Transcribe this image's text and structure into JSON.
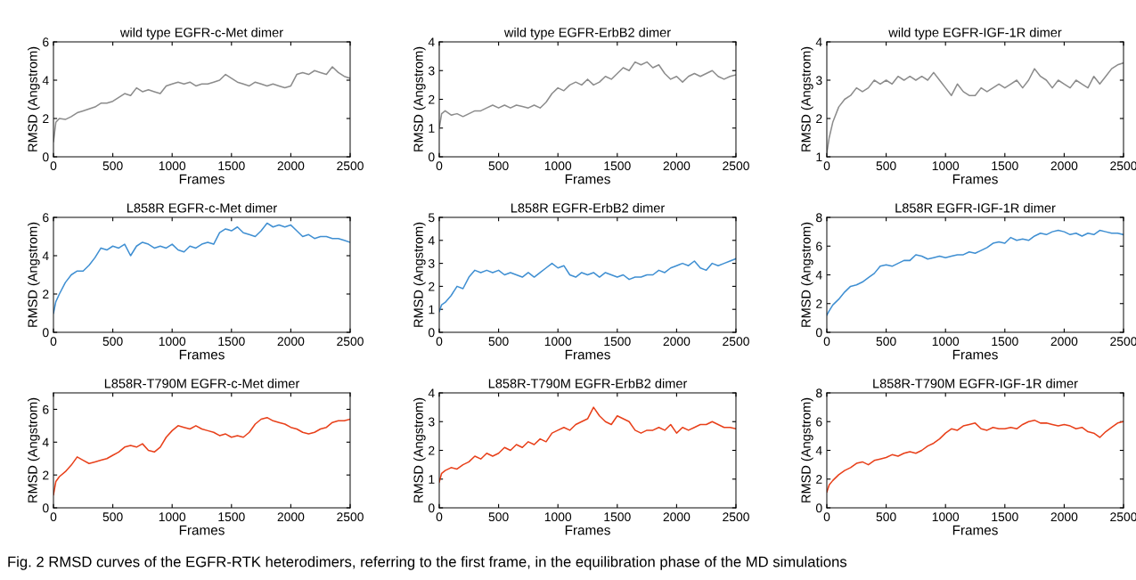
{
  "chart_data": [
    {
      "type": "line",
      "title": "wild type EGFR-c-Met dimer",
      "xlabel": "Frames",
      "ylabel": "RMSD (Angstrom)",
      "xlim": [
        0,
        2500
      ],
      "xticks": [
        0,
        500,
        1000,
        1500,
        2000,
        2500
      ],
      "ylim": [
        0,
        6
      ],
      "yticks": [
        0,
        2,
        4,
        6
      ],
      "x": [
        0,
        20,
        50,
        100,
        150,
        200,
        250,
        300,
        350,
        400,
        450,
        500,
        550,
        600,
        650,
        700,
        750,
        800,
        850,
        900,
        950,
        1000,
        1050,
        1100,
        1150,
        1200,
        1250,
        1300,
        1350,
        1400,
        1450,
        1500,
        1550,
        1600,
        1650,
        1700,
        1750,
        1800,
        1850,
        1900,
        1950,
        2000,
        2050,
        2100,
        2150,
        2200,
        2250,
        2300,
        2350,
        2400,
        2450,
        2500
      ],
      "series": [
        {
          "color": "#8c8c8c",
          "values": [
            0.8,
            1.8,
            2.0,
            1.95,
            2.1,
            2.3,
            2.4,
            2.5,
            2.6,
            2.8,
            2.8,
            2.9,
            3.1,
            3.3,
            3.2,
            3.6,
            3.4,
            3.5,
            3.4,
            3.3,
            3.7,
            3.8,
            3.9,
            3.8,
            3.9,
            3.7,
            3.8,
            3.8,
            3.9,
            4.0,
            4.3,
            4.1,
            3.9,
            3.8,
            3.7,
            3.9,
            3.8,
            3.7,
            3.8,
            3.7,
            3.6,
            3.7,
            4.3,
            4.4,
            4.3,
            4.5,
            4.4,
            4.3,
            4.7,
            4.4,
            4.2,
            4.1
          ]
        }
      ]
    },
    {
      "type": "line",
      "title": "wild type EGFR-ErbB2 dimer",
      "xlabel": "Frames",
      "ylabel": "RMSD (Angstrom)",
      "xlim": [
        0,
        2500
      ],
      "xticks": [
        0,
        500,
        1000,
        1500,
        2000,
        2500
      ],
      "ylim": [
        0,
        4
      ],
      "yticks": [
        0,
        1,
        2,
        3,
        4
      ],
      "x": [
        0,
        20,
        50,
        100,
        150,
        200,
        250,
        300,
        350,
        400,
        450,
        500,
        550,
        600,
        650,
        700,
        750,
        800,
        850,
        900,
        950,
        1000,
        1050,
        1100,
        1150,
        1200,
        1250,
        1300,
        1350,
        1400,
        1450,
        1500,
        1550,
        1600,
        1650,
        1700,
        1750,
        1800,
        1850,
        1900,
        1950,
        2000,
        2050,
        2100,
        2150,
        2200,
        2250,
        2300,
        2350,
        2400,
        2450,
        2500
      ],
      "series": [
        {
          "color": "#8c8c8c",
          "values": [
            1.0,
            1.5,
            1.6,
            1.45,
            1.5,
            1.4,
            1.5,
            1.6,
            1.6,
            1.7,
            1.8,
            1.7,
            1.8,
            1.7,
            1.8,
            1.75,
            1.7,
            1.8,
            1.7,
            1.9,
            2.2,
            2.4,
            2.3,
            2.5,
            2.6,
            2.5,
            2.7,
            2.5,
            2.6,
            2.8,
            2.7,
            2.9,
            3.1,
            3.0,
            3.3,
            3.2,
            3.3,
            3.1,
            3.2,
            2.9,
            2.7,
            2.8,
            2.6,
            2.8,
            2.9,
            2.8,
            2.9,
            3.0,
            2.8,
            2.7,
            2.8,
            2.85
          ]
        }
      ]
    },
    {
      "type": "line",
      "title": "wild type EGFR-IGF-1R dimer",
      "xlabel": "Frames",
      "ylabel": "RMSD (Angstrom)",
      "xlim": [
        0,
        2500
      ],
      "xticks": [
        0,
        500,
        1000,
        1500,
        2000,
        2500
      ],
      "ylim": [
        1,
        4
      ],
      "yticks": [
        1,
        2,
        3,
        4
      ],
      "x": [
        0,
        20,
        50,
        100,
        150,
        200,
        250,
        300,
        350,
        400,
        450,
        500,
        550,
        600,
        650,
        700,
        750,
        800,
        850,
        900,
        950,
        1000,
        1050,
        1100,
        1150,
        1200,
        1250,
        1300,
        1350,
        1400,
        1450,
        1500,
        1550,
        1600,
        1650,
        1700,
        1750,
        1800,
        1850,
        1900,
        1950,
        2000,
        2050,
        2100,
        2150,
        2200,
        2250,
        2300,
        2350,
        2400,
        2450,
        2500
      ],
      "series": [
        {
          "color": "#8c8c8c",
          "values": [
            1.1,
            1.5,
            1.9,
            2.3,
            2.5,
            2.6,
            2.8,
            2.7,
            2.8,
            3.0,
            2.9,
            3.0,
            2.9,
            3.1,
            3.0,
            3.1,
            3.0,
            3.1,
            3.0,
            3.2,
            3.0,
            2.8,
            2.6,
            2.9,
            2.7,
            2.6,
            2.6,
            2.8,
            2.7,
            2.8,
            2.9,
            2.8,
            2.9,
            3.0,
            2.8,
            3.0,
            3.3,
            3.1,
            3.0,
            2.8,
            3.0,
            2.9,
            2.8,
            3.0,
            2.9,
            2.8,
            3.1,
            2.9,
            3.1,
            3.3,
            3.4,
            3.45
          ]
        }
      ]
    },
    {
      "type": "line",
      "title": "L858R EGFR-c-Met dimer",
      "xlabel": "Frames",
      "ylabel": "RMSD (Angstrom)",
      "xlim": [
        0,
        2500
      ],
      "xticks": [
        0,
        500,
        1000,
        1500,
        2000,
        2500
      ],
      "ylim": [
        0,
        6
      ],
      "yticks": [
        0,
        2,
        4,
        6
      ],
      "x": [
        0,
        20,
        50,
        100,
        150,
        200,
        250,
        300,
        350,
        400,
        450,
        500,
        550,
        600,
        650,
        700,
        750,
        800,
        850,
        900,
        950,
        1000,
        1050,
        1100,
        1150,
        1200,
        1250,
        1300,
        1350,
        1400,
        1450,
        1500,
        1550,
        1600,
        1650,
        1700,
        1750,
        1800,
        1850,
        1900,
        1950,
        2000,
        2050,
        2100,
        2150,
        2200,
        2250,
        2300,
        2350,
        2400,
        2450,
        2500
      ],
      "series": [
        {
          "color": "#3f8fd2",
          "values": [
            1.0,
            1.6,
            2.0,
            2.6,
            3.0,
            3.2,
            3.2,
            3.5,
            3.9,
            4.4,
            4.3,
            4.5,
            4.4,
            4.6,
            4.0,
            4.5,
            4.7,
            4.6,
            4.4,
            4.5,
            4.4,
            4.6,
            4.3,
            4.2,
            4.5,
            4.4,
            4.6,
            4.7,
            4.6,
            5.2,
            5.4,
            5.3,
            5.5,
            5.2,
            5.1,
            5.0,
            5.3,
            5.7,
            5.5,
            5.6,
            5.5,
            5.6,
            5.3,
            5.0,
            5.1,
            4.9,
            5.0,
            5.0,
            4.9,
            4.9,
            4.8,
            4.7
          ]
        }
      ]
    },
    {
      "type": "line",
      "title": "L858R EGFR-ErbB2 dimer",
      "xlabel": "Frames",
      "ylabel": "RMSD (Angstrom)",
      "xlim": [
        0,
        2500
      ],
      "xticks": [
        0,
        500,
        1000,
        1500,
        2000,
        2500
      ],
      "ylim": [
        0,
        5
      ],
      "yticks": [
        0,
        1,
        2,
        3,
        4,
        5
      ],
      "x": [
        0,
        20,
        50,
        100,
        150,
        200,
        250,
        300,
        350,
        400,
        450,
        500,
        550,
        600,
        650,
        700,
        750,
        800,
        850,
        900,
        950,
        1000,
        1050,
        1100,
        1150,
        1200,
        1250,
        1300,
        1350,
        1400,
        1450,
        1500,
        1550,
        1600,
        1650,
        1700,
        1750,
        1800,
        1850,
        1900,
        1950,
        2000,
        2050,
        2100,
        2150,
        2200,
        2250,
        2300,
        2350,
        2400,
        2450,
        2500
      ],
      "series": [
        {
          "color": "#3f8fd2",
          "values": [
            0.9,
            1.2,
            1.3,
            1.6,
            2.0,
            1.9,
            2.4,
            2.7,
            2.6,
            2.7,
            2.6,
            2.7,
            2.5,
            2.6,
            2.5,
            2.4,
            2.6,
            2.4,
            2.6,
            2.8,
            3.0,
            2.8,
            2.9,
            2.5,
            2.4,
            2.6,
            2.5,
            2.6,
            2.4,
            2.6,
            2.5,
            2.4,
            2.5,
            2.3,
            2.4,
            2.4,
            2.5,
            2.5,
            2.7,
            2.6,
            2.8,
            2.9,
            3.0,
            2.9,
            3.1,
            2.8,
            2.7,
            3.0,
            2.9,
            3.0,
            3.1,
            3.2
          ]
        }
      ]
    },
    {
      "type": "line",
      "title": "L858R EGFR-IGF-1R dimer",
      "xlabel": "Frames",
      "ylabel": "RMSD (Angstrom)",
      "xlim": [
        0,
        2500
      ],
      "xticks": [
        0,
        500,
        1000,
        1500,
        2000,
        2500
      ],
      "ylim": [
        0,
        8
      ],
      "yticks": [
        0,
        2,
        4,
        6,
        8
      ],
      "x": [
        0,
        20,
        50,
        100,
        150,
        200,
        250,
        300,
        350,
        400,
        450,
        500,
        550,
        600,
        650,
        700,
        750,
        800,
        850,
        900,
        950,
        1000,
        1050,
        1100,
        1150,
        1200,
        1250,
        1300,
        1350,
        1400,
        1450,
        1500,
        1550,
        1600,
        1650,
        1700,
        1750,
        1800,
        1850,
        1900,
        1950,
        2000,
        2050,
        2100,
        2150,
        2200,
        2250,
        2300,
        2350,
        2400,
        2450,
        2500
      ],
      "series": [
        {
          "color": "#3f8fd2",
          "values": [
            1.2,
            1.5,
            1.9,
            2.3,
            2.8,
            3.2,
            3.3,
            3.5,
            3.8,
            4.1,
            4.6,
            4.7,
            4.6,
            4.8,
            5.0,
            5.0,
            5.4,
            5.3,
            5.1,
            5.2,
            5.3,
            5.2,
            5.3,
            5.4,
            5.4,
            5.6,
            5.5,
            5.7,
            5.9,
            6.2,
            6.3,
            6.2,
            6.6,
            6.4,
            6.5,
            6.4,
            6.7,
            6.9,
            6.8,
            7.0,
            7.1,
            7.0,
            6.8,
            6.9,
            6.7,
            6.9,
            6.8,
            7.1,
            7.0,
            6.9,
            6.9,
            6.8
          ]
        }
      ]
    },
    {
      "type": "line",
      "title": "L858R-T790M EGFR-c-Met dimer",
      "xlabel": "Frames",
      "ylabel": "RMSD (Angstrom)",
      "xlim": [
        0,
        2500
      ],
      "xticks": [
        0,
        500,
        1000,
        1500,
        2000,
        2500
      ],
      "ylim": [
        0,
        7
      ],
      "yticks": [
        0,
        2,
        4,
        6
      ],
      "x": [
        0,
        20,
        50,
        100,
        150,
        200,
        250,
        300,
        350,
        400,
        450,
        500,
        550,
        600,
        650,
        700,
        750,
        800,
        850,
        900,
        950,
        1000,
        1050,
        1100,
        1150,
        1200,
        1250,
        1300,
        1350,
        1400,
        1450,
        1500,
        1550,
        1600,
        1650,
        1700,
        1750,
        1800,
        1850,
        1900,
        1950,
        2000,
        2050,
        2100,
        2150,
        2200,
        2250,
        2300,
        2350,
        2400,
        2450,
        2500
      ],
      "series": [
        {
          "color": "#e8401a",
          "values": [
            0.8,
            1.6,
            1.9,
            2.2,
            2.6,
            3.1,
            2.9,
            2.7,
            2.8,
            2.9,
            3.0,
            3.2,
            3.4,
            3.7,
            3.8,
            3.7,
            3.9,
            3.5,
            3.4,
            3.7,
            4.3,
            4.7,
            5.0,
            4.9,
            4.8,
            5.0,
            4.8,
            4.7,
            4.6,
            4.4,
            4.5,
            4.3,
            4.4,
            4.3,
            4.6,
            5.1,
            5.4,
            5.5,
            5.3,
            5.2,
            5.1,
            4.9,
            4.8,
            4.6,
            4.5,
            4.6,
            4.8,
            4.9,
            5.2,
            5.3,
            5.3,
            5.4
          ]
        }
      ]
    },
    {
      "type": "line",
      "title": "L858R-T790M EGFR-ErbB2 dimer",
      "xlabel": "Frames",
      "ylabel": "RMSD (Angstrom)",
      "xlim": [
        0,
        2500
      ],
      "xticks": [
        0,
        500,
        1000,
        1500,
        2000,
        2500
      ],
      "ylim": [
        0,
        4
      ],
      "yticks": [
        0,
        1,
        2,
        3,
        4
      ],
      "x": [
        0,
        20,
        50,
        100,
        150,
        200,
        250,
        300,
        350,
        400,
        450,
        500,
        550,
        600,
        650,
        700,
        750,
        800,
        850,
        900,
        950,
        1000,
        1050,
        1100,
        1150,
        1200,
        1250,
        1300,
        1350,
        1400,
        1450,
        1500,
        1550,
        1600,
        1650,
        1700,
        1750,
        1800,
        1850,
        1900,
        1950,
        2000,
        2050,
        2100,
        2150,
        2200,
        2250,
        2300,
        2350,
        2400,
        2450,
        2500
      ],
      "series": [
        {
          "color": "#e8401a",
          "values": [
            0.9,
            1.2,
            1.3,
            1.4,
            1.35,
            1.5,
            1.6,
            1.8,
            1.7,
            1.9,
            1.8,
            1.9,
            2.1,
            2.0,
            2.2,
            2.1,
            2.3,
            2.2,
            2.4,
            2.3,
            2.6,
            2.7,
            2.8,
            2.7,
            2.9,
            3.0,
            3.1,
            3.5,
            3.2,
            3.0,
            2.9,
            3.2,
            3.1,
            3.0,
            2.7,
            2.6,
            2.7,
            2.7,
            2.8,
            2.7,
            2.9,
            2.6,
            2.8,
            2.7,
            2.8,
            2.9,
            2.9,
            3.0,
            2.9,
            2.8,
            2.8,
            2.75
          ]
        }
      ]
    },
    {
      "type": "line",
      "title": "L858R-T790M EGFR-IGF-1R dimer",
      "xlabel": "Frames",
      "ylabel": "RMSD (Angstrom)",
      "xlim": [
        0,
        2500
      ],
      "xticks": [
        0,
        500,
        1000,
        1500,
        2000,
        2500
      ],
      "ylim": [
        0,
        8
      ],
      "yticks": [
        0,
        2,
        4,
        6,
        8
      ],
      "x": [
        0,
        20,
        50,
        100,
        150,
        200,
        250,
        300,
        350,
        400,
        450,
        500,
        550,
        600,
        650,
        700,
        750,
        800,
        850,
        900,
        950,
        1000,
        1050,
        1100,
        1150,
        1200,
        1250,
        1300,
        1350,
        1400,
        1450,
        1500,
        1550,
        1600,
        1650,
        1700,
        1750,
        1800,
        1850,
        1900,
        1950,
        2000,
        2050,
        2100,
        2150,
        2200,
        2250,
        2300,
        2350,
        2400,
        2450,
        2500
      ],
      "series": [
        {
          "color": "#e8401a",
          "values": [
            1.1,
            1.6,
            1.9,
            2.3,
            2.6,
            2.8,
            3.1,
            3.2,
            3.0,
            3.3,
            3.4,
            3.5,
            3.7,
            3.6,
            3.8,
            3.9,
            3.8,
            4.0,
            4.3,
            4.5,
            4.8,
            5.2,
            5.5,
            5.4,
            5.7,
            5.8,
            5.9,
            5.5,
            5.4,
            5.6,
            5.5,
            5.5,
            5.6,
            5.5,
            5.8,
            6.0,
            6.1,
            5.9,
            5.9,
            5.8,
            5.7,
            5.8,
            5.7,
            5.5,
            5.6,
            5.3,
            5.2,
            4.9,
            5.3,
            5.6,
            5.9,
            6.0
          ]
        }
      ],
      "annotations": [
        "Fig. 2 RMSD curves of the EGFR-RTK heterodimers, referring to the first frame, in the equilibration phase of the MD simulations"
      ]
    }
  ]
}
